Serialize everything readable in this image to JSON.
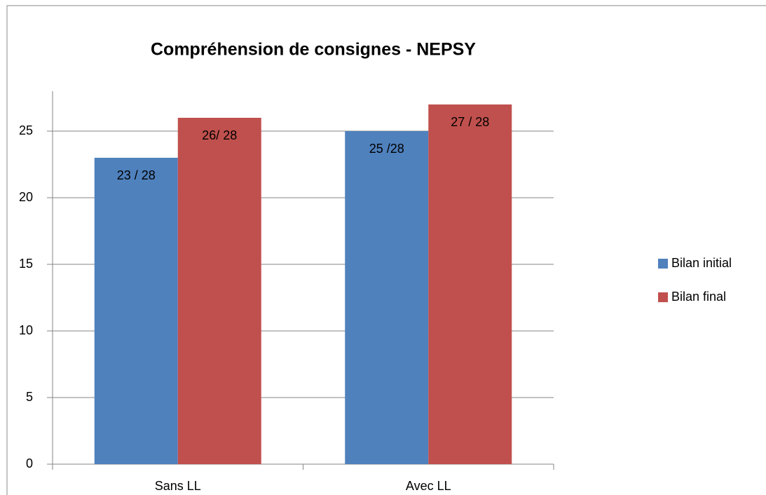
{
  "chart_data": {
    "type": "bar",
    "title": "Compréhension de consignes - NEPSY",
    "categories": [
      "Sans LL",
      "Avec LL"
    ],
    "series": [
      {
        "name": "Bilan initial",
        "color": "#4f81bd",
        "values": [
          23,
          25
        ],
        "value_labels": [
          "23 / 28",
          "25 /28"
        ]
      },
      {
        "name": "Bilan final",
        "color": "#c0504d",
        "values": [
          26,
          27
        ],
        "value_labels": [
          "26/ 28",
          "27 / 28"
        ]
      }
    ],
    "ylim": [
      0,
      28
    ],
    "yticks": [
      0,
      5,
      10,
      15,
      20,
      25
    ],
    "grid": true,
    "legend": "right"
  }
}
